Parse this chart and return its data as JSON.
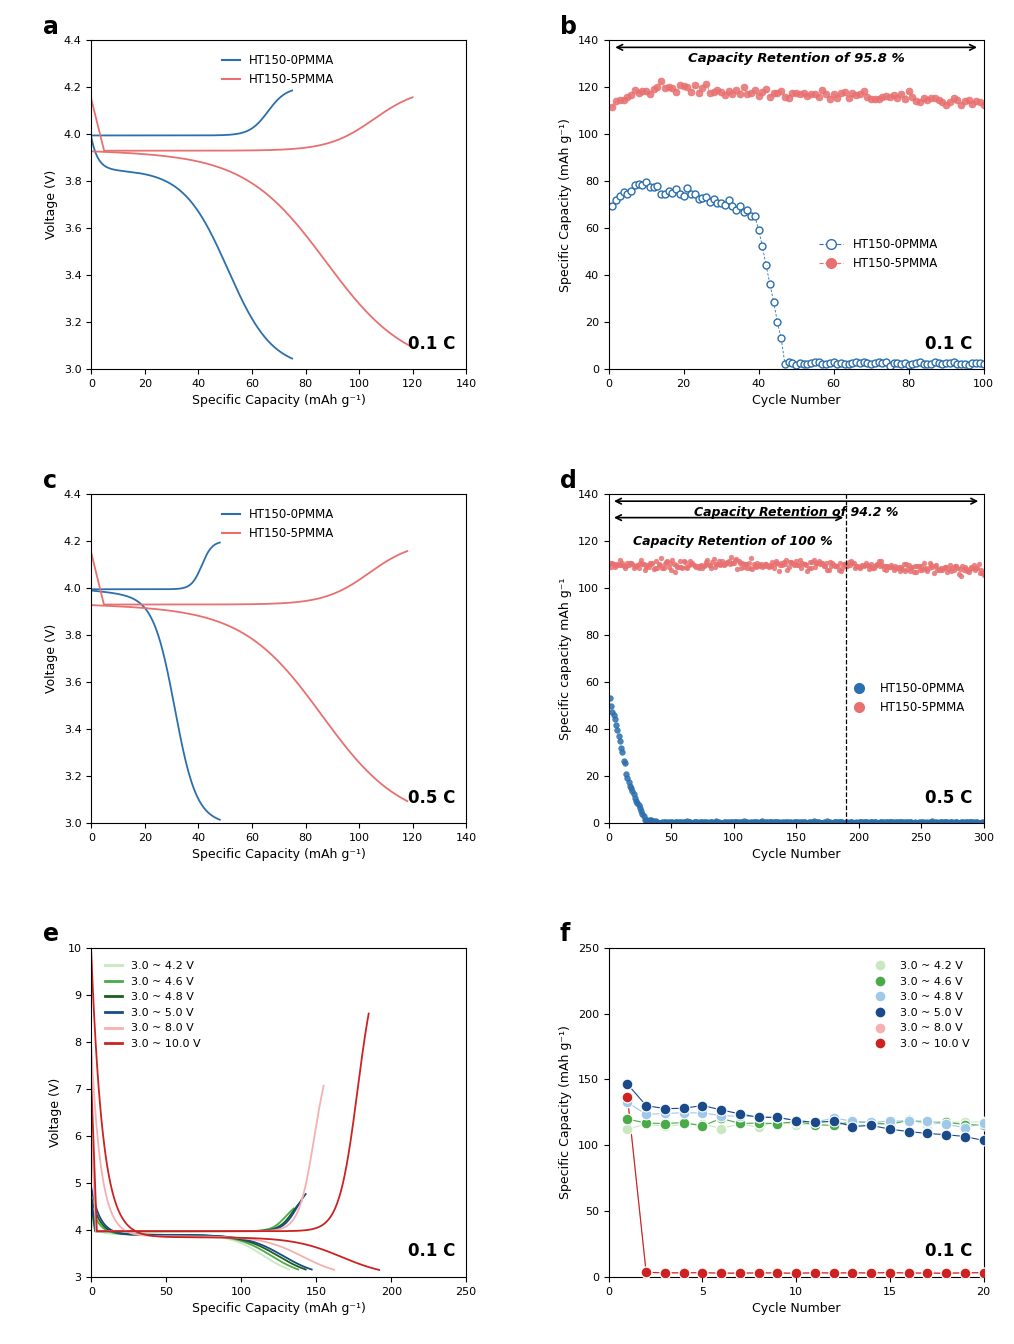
{
  "blue": "#2c6fad",
  "pink": "#e87070",
  "panel_a": {
    "label": "a",
    "c_label": "0.1 C",
    "xlabel": "Specific Capacity (mAh g⁻¹)",
    "ylabel": "Voltage (V)",
    "xlim": [
      0,
      140
    ],
    "ylim": [
      3.0,
      4.4
    ],
    "xticks": [
      0,
      20,
      40,
      60,
      80,
      100,
      120,
      140
    ],
    "yticks": [
      3.0,
      3.2,
      3.4,
      3.6,
      3.8,
      4.0,
      4.2,
      4.4
    ]
  },
  "panel_b": {
    "label": "b",
    "c_label": "0.1 C",
    "title": "Capacity Retention of 95.8 %",
    "xlabel": "Cycle Number",
    "ylabel": "Specific Capacity (mAh g⁻¹)",
    "xlim": [
      0,
      100
    ],
    "ylim": [
      0,
      140
    ],
    "xticks": [
      0,
      20,
      40,
      60,
      80,
      100
    ],
    "yticks": [
      0,
      20,
      40,
      60,
      80,
      100,
      120,
      140
    ]
  },
  "panel_c": {
    "label": "c",
    "c_label": "0.5 C",
    "xlabel": "Specific Capacity (mAh g⁻¹)",
    "ylabel": "Voltage (V)",
    "xlim": [
      0,
      140
    ],
    "ylim": [
      3.0,
      4.4
    ],
    "xticks": [
      0,
      20,
      40,
      60,
      80,
      100,
      120,
      140
    ],
    "yticks": [
      3.0,
      3.2,
      3.4,
      3.6,
      3.8,
      4.0,
      4.2,
      4.4
    ]
  },
  "panel_d": {
    "label": "d",
    "c_label": "0.5 C",
    "title1": "Capacity Retention of 94.2 %",
    "title2": "Capacity Retention of 100 %",
    "xlabel": "Cycle Number",
    "ylabel": "Specific capacity mAh g⁻¹",
    "xlim": [
      0,
      300
    ],
    "ylim": [
      0,
      140
    ],
    "xticks": [
      0,
      50,
      100,
      150,
      200,
      250,
      300
    ],
    "yticks": [
      0,
      20,
      40,
      60,
      80,
      100,
      120,
      140
    ],
    "dashed_x": 190
  },
  "panel_e": {
    "label": "e",
    "c_label": "0.1 C",
    "xlabel": "Specific Capacity (mAh g⁻¹)",
    "ylabel": "Voltage (V)",
    "xlim": [
      0,
      250
    ],
    "ylim": [
      3.0,
      10.0
    ],
    "xticks": [
      0,
      50,
      100,
      150,
      200,
      250
    ],
    "yticks": [
      3,
      4,
      5,
      6,
      7,
      8,
      9,
      10
    ],
    "legend_labels": [
      "3.0 ~ 4.2 V",
      "3.0 ~ 4.6 V",
      "3.0 ~ 4.8 V",
      "3.0 ~ 5.0 V",
      "3.0 ~ 8.0 V",
      "3.0 ~ 10.0 V"
    ],
    "legend_colors": [
      "#c8e8c0",
      "#4aaa4a",
      "#1a5e1a",
      "#1a4a8a",
      "#f5b0b0",
      "#cc2222"
    ],
    "v_highs": [
      4.2,
      4.6,
      4.8,
      5.0,
      8.0,
      10.0
    ],
    "caps_charge": [
      130,
      135,
      140,
      143,
      155,
      185
    ],
    "caps_discharge": [
      132,
      138,
      143,
      147,
      162,
      192
    ]
  },
  "panel_f": {
    "label": "f",
    "c_label": "0.1 C",
    "xlabel": "Cycle Number",
    "ylabel": "Specific Capacity (mAh g⁻¹)",
    "xlim": [
      0,
      20
    ],
    "ylim": [
      0,
      250
    ],
    "xticks": [
      0,
      5,
      10,
      15,
      20
    ],
    "yticks": [
      0,
      50,
      100,
      150,
      200,
      250
    ],
    "legend_labels": [
      "3.0 ~ 4.2 V",
      "3.0 ~ 4.6 V",
      "3.0 ~ 4.8 V",
      "3.0 ~ 5.0 V",
      "3.0 ~ 8.0 V",
      "3.0 ~ 10.0 V"
    ],
    "legend_colors": [
      "#c8e8c0",
      "#4aaa4a",
      "#a0c8e8",
      "#1a4a8a",
      "#f5b0b0",
      "#cc2222"
    ],
    "cap_init": [
      112,
      120,
      133,
      148,
      137,
      137
    ],
    "cap_stable": [
      115,
      118,
      125,
      130,
      3,
      3
    ],
    "cap_final": [
      118,
      117,
      115,
      105,
      3,
      3
    ]
  }
}
